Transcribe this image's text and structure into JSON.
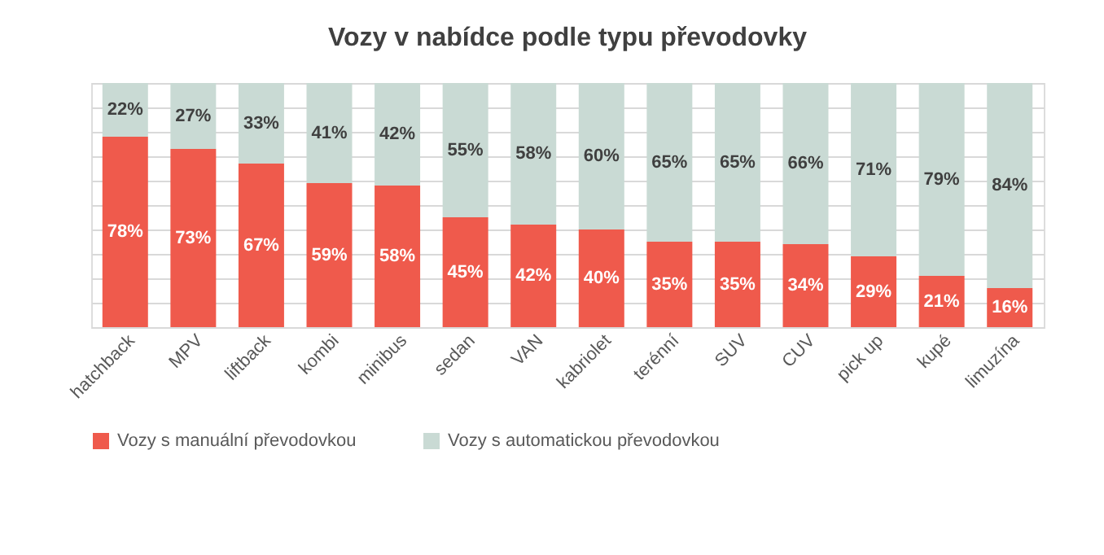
{
  "chart_data": {
    "type": "bar",
    "title": "Vozy v nabídce podle typu převodovky",
    "categories": [
      "hatchback",
      "MPV",
      "liftback",
      "kombi",
      "minibus",
      "sedan",
      "VAN",
      "kabriolet",
      "terénní",
      "SUV",
      "CUV",
      "pick up",
      "kupé",
      "limuzína"
    ],
    "stacked": true,
    "series": [
      {
        "name": "Vozy s manuální převodovkou",
        "color": "#ef5a4c",
        "values": [
          78,
          73,
          67,
          59,
          58,
          45,
          42,
          40,
          35,
          35,
          34,
          29,
          21,
          16
        ],
        "value_labels": [
          "78%",
          "73%",
          "67%",
          "59%",
          "58%",
          "45%",
          "42%",
          "40%",
          "35%",
          "35%",
          "34%",
          "29%",
          "21%",
          "16%"
        ]
      },
      {
        "name": "Vozy s automatickou převodovkou",
        "color": "#c9dad4",
        "values": [
          22,
          27,
          33,
          41,
          42,
          55,
          58,
          60,
          65,
          65,
          66,
          71,
          79,
          84
        ],
        "value_labels": [
          "22%",
          "27%",
          "33%",
          "41%",
          "42%",
          "55%",
          "58%",
          "60%",
          "65%",
          "65%",
          "66%",
          "71%",
          "79%",
          "84%"
        ]
      }
    ],
    "ylim": [
      0,
      100
    ],
    "tick_labels": "x",
    "grid": "y",
    "legend": "bottom"
  }
}
